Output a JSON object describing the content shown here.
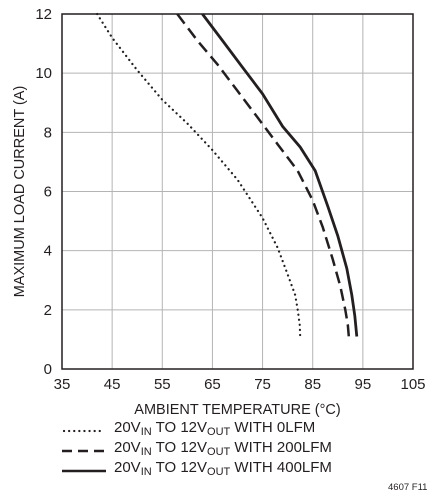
{
  "chart_data": {
    "type": "line",
    "xlabel": "AMBIENT TEMPERATURE (°C)",
    "ylabel": "MAXIMUM LOAD CURRENT (A)",
    "xlim": [
      35,
      105
    ],
    "ylim": [
      0,
      12
    ],
    "xticks": [
      35,
      45,
      55,
      65,
      75,
      85,
      95,
      105
    ],
    "yticks": [
      0,
      2,
      4,
      6,
      8,
      10,
      12
    ],
    "grid": true,
    "legend_placement": "bottom",
    "series": [
      {
        "name": "20VIN TO 12VOUT WITH 0LFM",
        "style": "dotted",
        "color": "#231f20",
        "x": [
          42,
          45,
          50,
          55,
          60,
          65,
          70,
          75,
          78,
          80,
          81.5,
          82,
          82.4,
          82.5
        ],
        "y": [
          12,
          11.2,
          10.1,
          9.1,
          8.3,
          7.4,
          6.4,
          5.1,
          4.1,
          3.2,
          2.5,
          2.0,
          1.5,
          1.1
        ]
      },
      {
        "name": "20VIN TO 12VOUT WITH 200LFM",
        "style": "dashed",
        "color": "#231f20",
        "x": [
          58,
          62,
          66,
          70,
          74,
          78,
          82,
          85,
          87,
          89,
          90.5,
          91.5,
          92,
          92.2
        ],
        "y": [
          12,
          11.1,
          10.3,
          9.4,
          8.5,
          7.6,
          6.7,
          5.7,
          4.8,
          3.7,
          2.8,
          2.0,
          1.5,
          1.1
        ]
      },
      {
        "name": "20VIN TO 12VOUT WITH 400LFM",
        "style": "solid",
        "color": "#231f20",
        "x": [
          63,
          67,
          71,
          75,
          79,
          82.5,
          85.5,
          88,
          90,
          91.8,
          92.8,
          93.4,
          93.8
        ],
        "y": [
          12,
          11.1,
          10.2,
          9.3,
          8.2,
          7.5,
          6.7,
          5.5,
          4.5,
          3.4,
          2.5,
          1.8,
          1.1
        ]
      }
    ]
  },
  "legend": {
    "entries": [
      {
        "pre": "20V",
        "sub1": "IN",
        "mid": " TO 12V",
        "sub2": "OUT",
        "post": " WITH 0LFM",
        "style": "dotted"
      },
      {
        "pre": "20V",
        "sub1": "IN",
        "mid": " TO 12V",
        "sub2": "OUT",
        "post": " WITH 200LFM",
        "style": "dashed"
      },
      {
        "pre": "20V",
        "sub1": "IN",
        "mid": " TO 12V",
        "sub2": "OUT",
        "post": " WITH 400LFM",
        "style": "solid"
      }
    ]
  },
  "figure_id": "4607 F11"
}
